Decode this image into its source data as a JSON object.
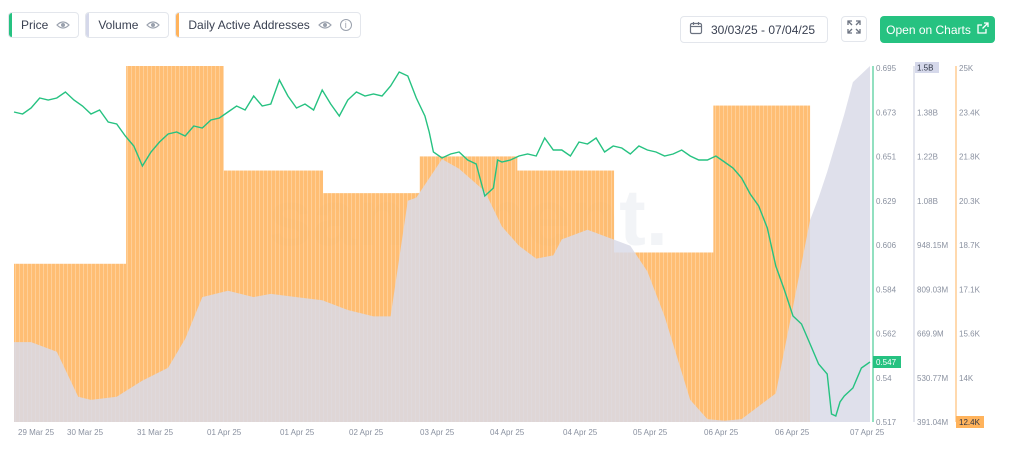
{
  "legend": {
    "price": {
      "label": "Price",
      "color": "#26c281",
      "icon": "eye-icon"
    },
    "volume": {
      "label": "Volume",
      "color": "#d5d8ea",
      "icon": "eye-icon"
    },
    "daa": {
      "label": "Daily Active Addresses",
      "color": "#ffb35c",
      "icons": [
        "eye-icon",
        "info-icon"
      ],
      "info_glyph": "i"
    }
  },
  "toolbar": {
    "date_range": "30/03/25 - 07/04/25",
    "calendar_icon": "calendar-icon",
    "fullscreen_icon": "fullscreen-icon",
    "open_button": "Open on Charts",
    "open_icon": "external-link-icon"
  },
  "watermark": "santiment.",
  "chart_data": {
    "type": "line",
    "x_tick_labels": [
      "29 Mar 25",
      "30 Mar 25",
      "31 Mar 25",
      "01 Apr 25",
      "01 Apr 25",
      "02 Apr 25",
      "03 Apr 25",
      "04 Apr 25",
      "04 Apr 25",
      "05 Apr 25",
      "06 Apr 25",
      "06 Apr 25",
      "07 Apr 25"
    ],
    "axes": {
      "price": {
        "ticks": [
          "0.695",
          "0.673",
          "0.651",
          "0.629",
          "0.606",
          "0.584",
          "0.562",
          "0.54",
          "0.517"
        ],
        "range": [
          0.517,
          0.695
        ],
        "current": "0.547",
        "color": "#26c281"
      },
      "volume": {
        "ticks": [
          "1.5B",
          "1.38B",
          "1.22B",
          "1.08B",
          "948.15M",
          "809.03M",
          "669.9M",
          "530.77M",
          "391.04M"
        ],
        "range": [
          391040000,
          1500000000
        ],
        "top_badge": "1.5B"
      },
      "daa": {
        "ticks": [
          "25K",
          "23.4K",
          "21.8K",
          "20.3K",
          "18.7K",
          "17.1K",
          "15.6K",
          "14K",
          "12.4K"
        ],
        "range": [
          12400,
          25000
        ],
        "badge": "12.4K",
        "color": "#ffb35c"
      }
    },
    "series": [
      {
        "name": "Daily Active Addresses",
        "type": "step-bar",
        "steps": [
          {
            "x0": 0,
            "x1": 0.131,
            "value": 18000
          },
          {
            "x0": 0.131,
            "x1": 0.245,
            "value": 25000
          },
          {
            "x0": 0.245,
            "x1": 0.361,
            "value": 21300
          },
          {
            "x0": 0.361,
            "x1": 0.474,
            "value": 20500
          },
          {
            "x0": 0.474,
            "x1": 0.588,
            "value": 21800
          },
          {
            "x0": 0.588,
            "x1": 0.701,
            "value": 21300
          },
          {
            "x0": 0.701,
            "x1": 0.817,
            "value": 18400
          },
          {
            "x0": 0.817,
            "x1": 0.93,
            "value": 23600
          }
        ]
      },
      {
        "name": "Volume",
        "type": "area",
        "x": [
          0,
          0.02,
          0.05,
          0.075,
          0.09,
          0.12,
          0.15,
          0.18,
          0.2,
          0.22,
          0.25,
          0.28,
          0.3,
          0.33,
          0.36,
          0.39,
          0.42,
          0.44,
          0.46,
          0.47,
          0.48,
          0.5,
          0.52,
          0.55,
          0.57,
          0.59,
          0.61,
          0.63,
          0.64,
          0.67,
          0.7,
          0.72,
          0.74,
          0.76,
          0.79,
          0.81,
          0.83,
          0.85,
          0.87,
          0.89,
          0.91,
          0.93,
          0.94,
          0.95,
          0.96,
          0.97,
          0.98,
          1.0
        ],
        "y": [
          640000000,
          640000000,
          610000000,
          470000000,
          460000000,
          470000000,
          520000000,
          560000000,
          650000000,
          780000000,
          800000000,
          780000000,
          790000000,
          780000000,
          770000000,
          740000000,
          720000000,
          720000000,
          1080000000,
          1090000000,
          1130000000,
          1210000000,
          1180000000,
          1110000000,
          1000000000,
          940000000,
          900000000,
          910000000,
          960000000,
          990000000,
          960000000,
          940000000,
          860000000,
          720000000,
          460000000,
          400000000,
          395000000,
          400000000,
          440000000,
          480000000,
          750000000,
          1020000000,
          1090000000,
          1170000000,
          1260000000,
          1350000000,
          1450000000,
          1500000000
        ]
      },
      {
        "name": "Price",
        "type": "line",
        "x": [
          0,
          0.01,
          0.02,
          0.03,
          0.04,
          0.05,
          0.06,
          0.07,
          0.08,
          0.09,
          0.1,
          0.11,
          0.12,
          0.13,
          0.14,
          0.15,
          0.16,
          0.17,
          0.18,
          0.19,
          0.2,
          0.21,
          0.22,
          0.23,
          0.24,
          0.25,
          0.26,
          0.27,
          0.28,
          0.29,
          0.3,
          0.31,
          0.32,
          0.33,
          0.34,
          0.35,
          0.36,
          0.37,
          0.38,
          0.39,
          0.4,
          0.41,
          0.42,
          0.43,
          0.44,
          0.45,
          0.46,
          0.47,
          0.48,
          0.485,
          0.49,
          0.5,
          0.51,
          0.52,
          0.53,
          0.54,
          0.55,
          0.56,
          0.565,
          0.57,
          0.58,
          0.59,
          0.6,
          0.61,
          0.62,
          0.63,
          0.64,
          0.65,
          0.66,
          0.67,
          0.68,
          0.69,
          0.7,
          0.71,
          0.72,
          0.73,
          0.74,
          0.75,
          0.76,
          0.77,
          0.78,
          0.79,
          0.8,
          0.81,
          0.82,
          0.83,
          0.84,
          0.85,
          0.86,
          0.87,
          0.88,
          0.89,
          0.9,
          0.91,
          0.92,
          0.93,
          0.94,
          0.95,
          0.955,
          0.96,
          0.965,
          0.97,
          0.98,
          0.99,
          1.0
        ],
        "y": [
          0.672,
          0.671,
          0.674,
          0.679,
          0.678,
          0.679,
          0.682,
          0.678,
          0.675,
          0.671,
          0.673,
          0.667,
          0.666,
          0.66,
          0.655,
          0.645,
          0.652,
          0.657,
          0.661,
          0.662,
          0.66,
          0.665,
          0.664,
          0.668,
          0.669,
          0.672,
          0.675,
          0.673,
          0.68,
          0.675,
          0.676,
          0.688,
          0.68,
          0.674,
          0.676,
          0.673,
          0.683,
          0.676,
          0.67,
          0.678,
          0.682,
          0.68,
          0.681,
          0.68,
          0.685,
          0.692,
          0.69,
          0.679,
          0.67,
          0.662,
          0.652,
          0.649,
          0.651,
          0.652,
          0.648,
          0.646,
          0.63,
          0.634,
          0.648,
          0.647,
          0.648,
          0.65,
          0.651,
          0.65,
          0.659,
          0.653,
          0.653,
          0.65,
          0.657,
          0.656,
          0.659,
          0.652,
          0.655,
          0.654,
          0.651,
          0.655,
          0.653,
          0.652,
          0.65,
          0.651,
          0.653,
          0.65,
          0.648,
          0.648,
          0.65,
          0.647,
          0.644,
          0.639,
          0.631,
          0.625,
          0.614,
          0.595,
          0.583,
          0.57,
          0.566,
          0.556,
          0.546,
          0.541,
          0.521,
          0.52,
          0.527,
          0.53,
          0.534,
          0.544,
          0.547
        ]
      }
    ],
    "grid": false,
    "legend_position": "top-left"
  }
}
